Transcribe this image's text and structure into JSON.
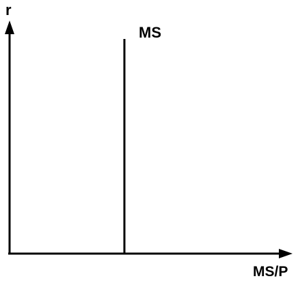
{
  "diagram": {
    "y_axis_label": "r",
    "x_axis_label": "MS/P",
    "curve_label": "MS",
    "line_color": "#000000",
    "background": "#ffffff"
  }
}
